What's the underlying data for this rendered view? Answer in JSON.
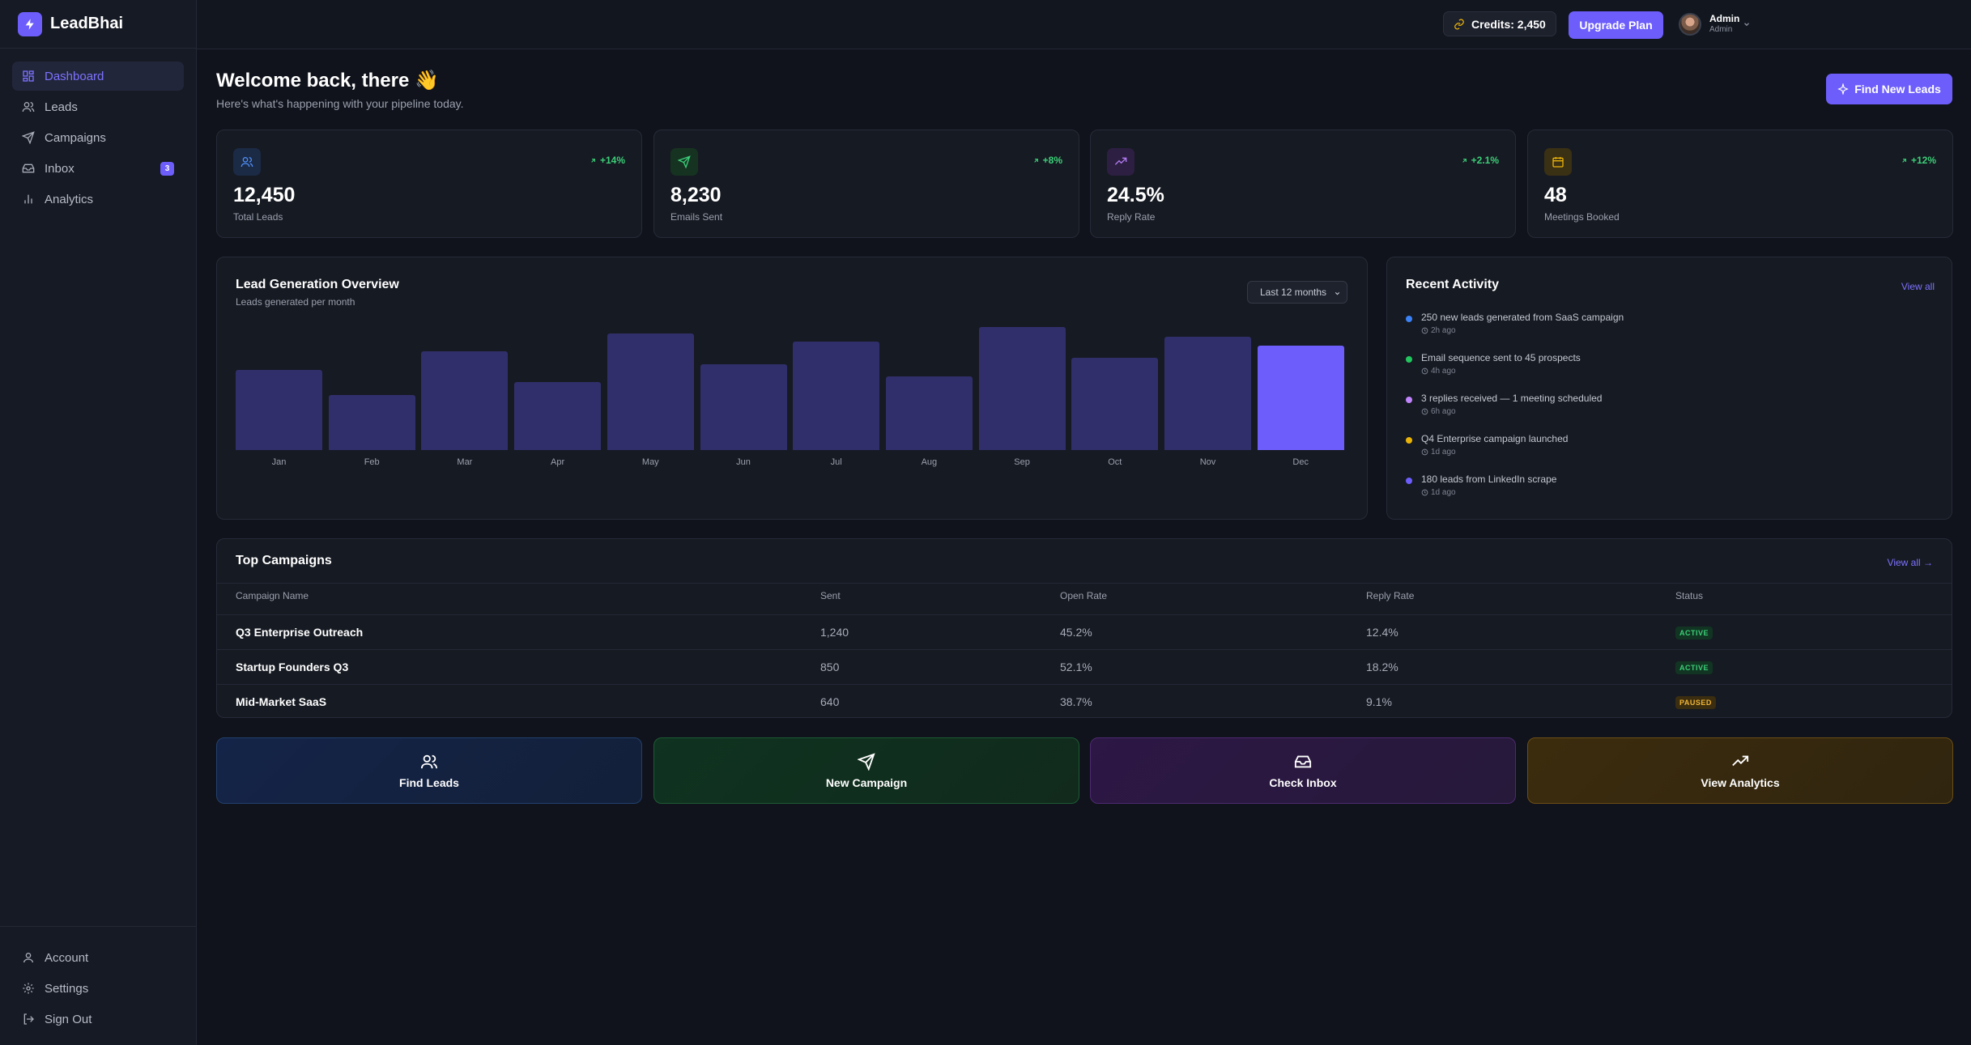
{
  "brand": {
    "name": "LeadBhai"
  },
  "sidebar": {
    "items": [
      {
        "label": "Dashboard",
        "icon": "dashboard-icon",
        "active": true
      },
      {
        "label": "Leads",
        "icon": "users-icon"
      },
      {
        "label": "Campaigns",
        "icon": "send-icon"
      },
      {
        "label": "Inbox",
        "icon": "inbox-icon",
        "badge": "3"
      },
      {
        "label": "Analytics",
        "icon": "bar-chart-icon"
      }
    ],
    "bottom": [
      {
        "label": "Account",
        "icon": "user-icon"
      },
      {
        "label": "Settings",
        "icon": "gear-icon"
      },
      {
        "label": "Sign Out",
        "icon": "sign-out-icon"
      }
    ]
  },
  "topbar": {
    "credits": "Credits: 2,450",
    "upgrade": "Upgrade Plan",
    "user_name": "Admin",
    "user_role": "Admin"
  },
  "welcome": {
    "title": "Welcome back, there 👋",
    "subtitle": "Here's what's happening with your pipeline today.",
    "cta": "Find New Leads"
  },
  "stats": [
    {
      "value": "12,450",
      "label": "Total Leads",
      "trend": "+14%",
      "icon": "users-icon",
      "accent": "#3b82f6"
    },
    {
      "value": "8,230",
      "label": "Emails Sent",
      "trend": "+8%",
      "icon": "send-icon",
      "accent": "#22c55e"
    },
    {
      "value": "24.5%",
      "label": "Reply Rate",
      "trend": "+2.1%",
      "icon": "trending-up-icon",
      "accent": "#a855f7"
    },
    {
      "value": "48",
      "label": "Meetings Booked",
      "trend": "+12%",
      "icon": "calendar-icon",
      "accent": "#eab308"
    }
  ],
  "overview": {
    "title": "Lead Generation Overview",
    "subtitle": "Leads generated per month",
    "range": "Last 12 months"
  },
  "chart_data": {
    "type": "bar",
    "categories": [
      "Jan",
      "Feb",
      "Mar",
      "Apr",
      "May",
      "Jun",
      "Jul",
      "Aug",
      "Sep",
      "Oct",
      "Nov",
      "Dec"
    ],
    "values": [
      65,
      45,
      80,
      55,
      95,
      70,
      88,
      60,
      100,
      75,
      92,
      85
    ],
    "highlight": "Dec",
    "colors": {
      "bar": "#312f6b",
      "highlight": "#6d5efc"
    }
  },
  "activity": {
    "title": "Recent Activity",
    "view_all": "View all",
    "items": [
      {
        "text": "250 new leads generated from SaaS campaign",
        "time": "2h ago",
        "color": "#3b82f6"
      },
      {
        "text": "Email sequence sent to 45 prospects",
        "time": "4h ago",
        "color": "#22c55e"
      },
      {
        "text": "3 replies received — 1 meeting scheduled",
        "time": "6h ago",
        "color": "#c084fc"
      },
      {
        "text": "Q4 Enterprise campaign launched",
        "time": "1d ago",
        "color": "#eab308"
      },
      {
        "text": "180 leads from LinkedIn scrape",
        "time": "1d ago",
        "color": "#6d5efc"
      }
    ]
  },
  "campaigns": {
    "title": "Top Campaigns",
    "view_all": "View all →",
    "columns": [
      "Campaign Name",
      "Sent",
      "Open Rate",
      "Reply Rate",
      "Status"
    ],
    "rows": [
      {
        "name": "Q3 Enterprise Outreach",
        "sent": "1,240",
        "open": "45.2%",
        "reply": "12.4%",
        "status": "ACTIVE"
      },
      {
        "name": "Startup Founders Q3",
        "sent": "850",
        "open": "52.1%",
        "reply": "18.2%",
        "status": "ACTIVE"
      },
      {
        "name": "Mid-Market SaaS",
        "sent": "640",
        "open": "38.7%",
        "reply": "9.1%",
        "status": "PAUSED"
      }
    ]
  },
  "quick_actions": [
    {
      "label": "Find Leads",
      "icon": "users-icon"
    },
    {
      "label": "New Campaign",
      "icon": "send-icon"
    },
    {
      "label": "Check Inbox",
      "icon": "inbox-icon"
    },
    {
      "label": "View Analytics",
      "icon": "trending-up-icon"
    }
  ]
}
